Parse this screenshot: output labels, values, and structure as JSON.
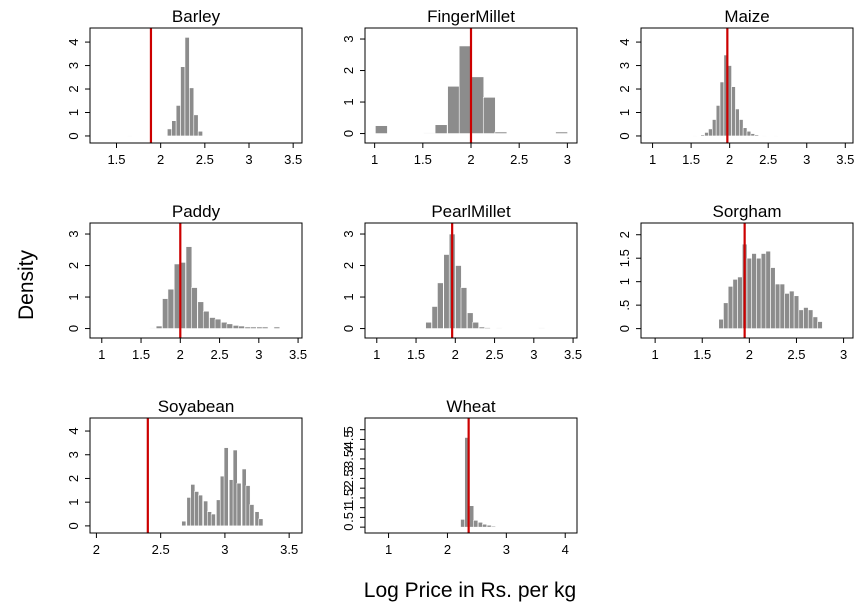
{
  "figure": {
    "ylabel": "Density",
    "xlabel": "Log Price in Rs. per kg"
  },
  "colors": {
    "bars": "#8c8c8c",
    "reference_line": "#cc0000"
  },
  "chart_data": [
    {
      "type": "bar",
      "title": "Barley",
      "xlim": [
        1.2,
        3.6
      ],
      "xticks": [
        1.5,
        2,
        2.5,
        3,
        3.5
      ],
      "xtick_labels": [
        "1.5",
        "2",
        "2.5",
        "3",
        "3.5"
      ],
      "ylim": [
        -0.3,
        4.6
      ],
      "yticks": [
        0,
        1,
        2,
        3,
        4
      ],
      "ytick_labels": [
        "0",
        "1",
        "2",
        "3",
        "4"
      ],
      "bin_width": 0.05,
      "bins": [
        [
          1.65,
          0.02
        ],
        [
          2.1,
          0.3
        ],
        [
          2.15,
          0.65
        ],
        [
          2.2,
          1.3
        ],
        [
          2.25,
          2.95
        ],
        [
          2.3,
          4.2
        ],
        [
          2.35,
          2.05
        ],
        [
          2.4,
          0.9
        ],
        [
          2.45,
          0.2
        ]
      ],
      "reference_line": 1.89
    },
    {
      "type": "bar",
      "title": "FingerMillet",
      "xlim": [
        0.9,
        3.1
      ],
      "xticks": [
        1,
        1.5,
        2,
        2.5,
        3
      ],
      "xtick_labels": [
        "1",
        "1.5",
        "2",
        "2.5",
        "3"
      ],
      "ylim": [
        -0.3,
        3.35
      ],
      "yticks": [
        0,
        1,
        2,
        3
      ],
      "ytick_labels": [
        "0",
        "1",
        "2",
        "3"
      ],
      "bin_width": 0.125,
      "bins": [
        [
          1.07,
          0.25
        ],
        [
          1.57,
          0.02
        ],
        [
          1.69,
          0.28
        ],
        [
          1.82,
          1.5
        ],
        [
          1.94,
          2.78
        ],
        [
          2.07,
          1.8
        ],
        [
          2.19,
          1.15
        ],
        [
          2.31,
          0.05
        ],
        [
          2.94,
          0.05
        ]
      ],
      "reference_line": 2.0
    },
    {
      "type": "bar",
      "title": "Maize",
      "xlim": [
        0.85,
        3.6
      ],
      "xticks": [
        1,
        1.5,
        2,
        2.5,
        3,
        3.5
      ],
      "xtick_labels": [
        "1",
        "1.5",
        "2",
        "2.5",
        "3",
        "3.5"
      ],
      "ylim": [
        -0.3,
        4.6
      ],
      "yticks": [
        0,
        1,
        2,
        3,
        4
      ],
      "ytick_labels": [
        "0",
        "1",
        "2",
        "3",
        "4"
      ],
      "bin_width": 0.05,
      "bins": [
        [
          1.55,
          0.02
        ],
        [
          1.65,
          0.05
        ],
        [
          1.7,
          0.15
        ],
        [
          1.75,
          0.3
        ],
        [
          1.8,
          0.7
        ],
        [
          1.85,
          1.3
        ],
        [
          1.9,
          2.3
        ],
        [
          1.95,
          3.45
        ],
        [
          2.0,
          3.0
        ],
        [
          2.05,
          2.1
        ],
        [
          2.1,
          1.15
        ],
        [
          2.15,
          0.7
        ],
        [
          2.2,
          0.35
        ],
        [
          2.25,
          0.2
        ],
        [
          2.3,
          0.1
        ],
        [
          2.35,
          0.05
        ],
        [
          2.45,
          0.02
        ],
        [
          2.6,
          0.02
        ]
      ],
      "reference_line": 1.97
    },
    {
      "type": "bar",
      "title": "Paddy",
      "xlim": [
        0.85,
        3.55
      ],
      "xticks": [
        1,
        1.5,
        2,
        2.5,
        3,
        3.5
      ],
      "xtick_labels": [
        "1",
        "1.5",
        "2",
        "2.5",
        "3",
        "3.5"
      ],
      "ylim": [
        -0.3,
        3.35
      ],
      "yticks": [
        0,
        1,
        2,
        3
      ],
      "ytick_labels": [
        "0",
        "1",
        "2",
        "3"
      ],
      "bin_width": 0.075,
      "bins": [
        [
          1.65,
          0.02
        ],
        [
          1.73,
          0.08
        ],
        [
          1.81,
          0.95
        ],
        [
          1.88,
          1.25
        ],
        [
          1.96,
          2.05
        ],
        [
          2.03,
          2.1
        ],
        [
          2.11,
          2.6
        ],
        [
          2.18,
          1.3
        ],
        [
          2.26,
          0.85
        ],
        [
          2.33,
          0.55
        ],
        [
          2.41,
          0.35
        ],
        [
          2.48,
          0.3
        ],
        [
          2.56,
          0.2
        ],
        [
          2.63,
          0.15
        ],
        [
          2.71,
          0.1
        ],
        [
          2.78,
          0.08
        ],
        [
          2.86,
          0.05
        ],
        [
          2.93,
          0.05
        ],
        [
          3.01,
          0.05
        ],
        [
          3.08,
          0.05
        ],
        [
          3.23,
          0.05
        ]
      ],
      "reference_line": 2.0
    },
    {
      "type": "bar",
      "title": "PearlMillet",
      "xlim": [
        0.85,
        3.55
      ],
      "xticks": [
        1,
        1.5,
        2,
        2.5,
        3,
        3.5
      ],
      "xtick_labels": [
        "1",
        "1.5",
        "2",
        "2.5",
        "3",
        "3.5"
      ],
      "ylim": [
        -0.3,
        3.35
      ],
      "yticks": [
        0,
        1,
        2,
        3
      ],
      "ytick_labels": [
        "0",
        "1",
        "2",
        "3"
      ],
      "bin_width": 0.075,
      "bins": [
        [
          1.66,
          0.2
        ],
        [
          1.74,
          0.7
        ],
        [
          1.81,
          1.45
        ],
        [
          1.89,
          2.35
        ],
        [
          1.96,
          3.0
        ],
        [
          2.04,
          2.0
        ],
        [
          2.11,
          1.3
        ],
        [
          2.19,
          0.5
        ],
        [
          2.26,
          0.2
        ],
        [
          2.34,
          0.05
        ],
        [
          2.41,
          0.03
        ],
        [
          2.56,
          0.02
        ],
        [
          3.1,
          0.02
        ]
      ],
      "reference_line": 1.96
    },
    {
      "type": "bar",
      "title": "Sorgham",
      "xlim": [
        0.85,
        3.1
      ],
      "xticks": [
        1,
        1.5,
        2,
        2.5,
        3
      ],
      "xtick_labels": [
        "1",
        "1.5",
        "2",
        "2.5",
        "3"
      ],
      "ylim": [
        -0.2,
        2.25
      ],
      "yticks": [
        0,
        0.5,
        1,
        1.5,
        2
      ],
      "ytick_labels": [
        "0",
        ".5",
        "1",
        "1.5",
        "2"
      ],
      "bin_width": 0.05,
      "bins": [
        [
          1.7,
          0.2
        ],
        [
          1.75,
          0.55
        ],
        [
          1.8,
          0.9
        ],
        [
          1.85,
          1.05
        ],
        [
          1.9,
          1.1
        ],
        [
          1.95,
          1.8
        ],
        [
          2.0,
          1.5
        ],
        [
          2.05,
          1.6
        ],
        [
          2.1,
          1.5
        ],
        [
          2.15,
          1.6
        ],
        [
          2.2,
          1.65
        ],
        [
          2.25,
          1.3
        ],
        [
          2.3,
          0.95
        ],
        [
          2.35,
          0.95
        ],
        [
          2.4,
          0.75
        ],
        [
          2.45,
          0.8
        ],
        [
          2.5,
          0.7
        ],
        [
          2.55,
          0.4
        ],
        [
          2.6,
          0.45
        ],
        [
          2.65,
          0.4
        ],
        [
          2.7,
          0.25
        ],
        [
          2.75,
          0.15
        ]
      ],
      "reference_line": 1.95
    },
    {
      "type": "bar",
      "title": "Soyabean",
      "xlim": [
        1.95,
        3.6
      ],
      "xticks": [
        2,
        2.5,
        3,
        3.5
      ],
      "xtick_labels": [
        "2",
        "2.5",
        "3",
        "3.5"
      ],
      "ylim": [
        -0.3,
        4.55
      ],
      "yticks": [
        0,
        1,
        2,
        3,
        4
      ],
      "ytick_labels": [
        "0",
        "1",
        "2",
        "3",
        "4"
      ],
      "bin_width": 0.0333,
      "bins": [
        [
          2.68,
          0.2
        ],
        [
          2.72,
          1.2
        ],
        [
          2.75,
          1.75
        ],
        [
          2.78,
          1.45
        ],
        [
          2.81,
          1.3
        ],
        [
          2.85,
          1.05
        ],
        [
          2.88,
          0.6
        ],
        [
          2.91,
          0.5
        ],
        [
          2.95,
          1.1
        ],
        [
          2.98,
          2.1
        ],
        [
          3.01,
          3.3
        ],
        [
          3.05,
          1.95
        ],
        [
          3.08,
          3.2
        ],
        [
          3.11,
          1.8
        ],
        [
          3.15,
          2.4
        ],
        [
          3.18,
          1.7
        ],
        [
          3.21,
          0.9
        ],
        [
          3.25,
          0.6
        ],
        [
          3.28,
          0.3
        ]
      ],
      "reference_line": 2.4
    },
    {
      "type": "bar",
      "title": "Wheat",
      "xlim": [
        0.6,
        4.2
      ],
      "xticks": [
        1,
        2,
        3,
        4
      ],
      "xtick_labels": [
        "1",
        "2",
        "3",
        "4"
      ],
      "ylim": [
        -0.3,
        5.6
      ],
      "yticks": [
        0,
        0.5,
        1,
        1.5,
        2,
        2.5,
        3,
        3.5,
        4,
        4.5,
        5
      ],
      "ytick_labels": [
        "0",
        ".5",
        "1",
        "1.5",
        "2",
        "2.5",
        "3",
        "3.5",
        "4",
        "4.5",
        "5"
      ],
      "bin_width": 0.075,
      "bins": [
        [
          2.26,
          0.4
        ],
        [
          2.33,
          4.6
        ],
        [
          2.41,
          1.1
        ],
        [
          2.48,
          0.35
        ],
        [
          2.56,
          0.25
        ],
        [
          2.63,
          0.15
        ],
        [
          2.71,
          0.1
        ],
        [
          2.78,
          0.05
        ]
      ],
      "reference_line": 2.36
    }
  ]
}
